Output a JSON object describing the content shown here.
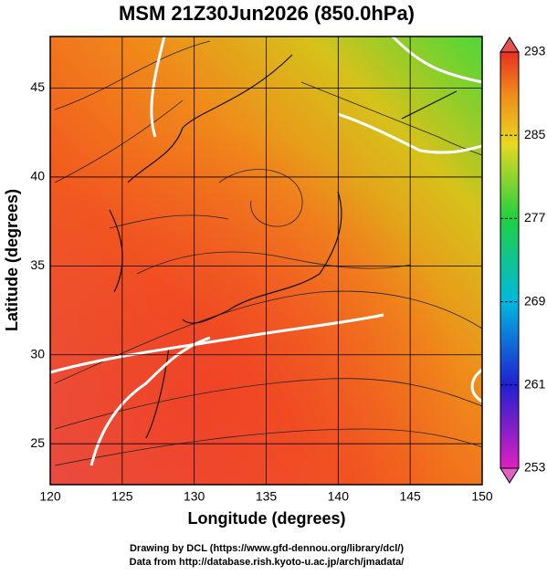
{
  "title": "MSM 21Z30Jun2026 (850.0hPa)",
  "x_axis": {
    "label": "Longitude (degrees)",
    "lim": [
      120,
      150
    ],
    "ticks": [
      120,
      125,
      130,
      135,
      140,
      145,
      150
    ]
  },
  "y_axis": {
    "label": "Latitude  (degrees)",
    "lim": [
      22.7,
      47.9
    ],
    "ticks": [
      25,
      30,
      35,
      40,
      45
    ]
  },
  "colorbar": {
    "lim": [
      253,
      293
    ],
    "ticks": [
      253,
      261,
      269,
      277,
      285,
      293
    ]
  },
  "credits": [
    "Drawing by DCL (https://www.gfd-dennou.org/library/dcl/)",
    "Data from http://database.rish.kyoto-u.ac.jp/arch/jmadata/"
  ]
}
